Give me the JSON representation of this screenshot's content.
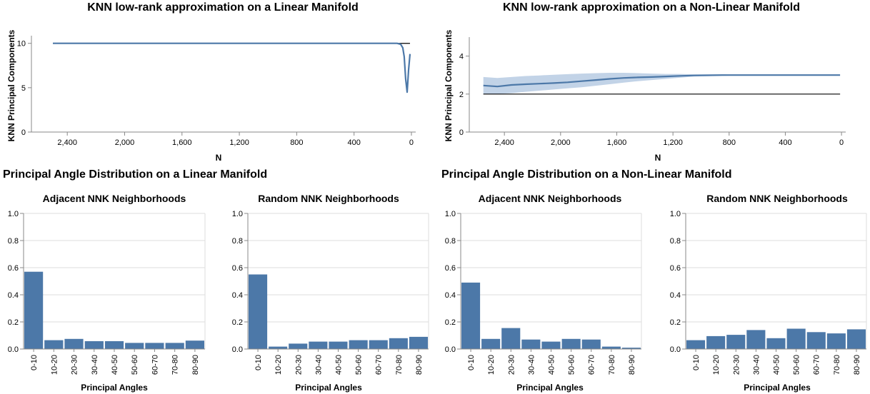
{
  "colors": {
    "series": "#4c78a8",
    "band": "#a8c0dd",
    "reference": "#000000",
    "grid": "#dddddd",
    "axis": "#888888"
  },
  "line_charts": [
    {
      "type": "line",
      "title": "KNN low-rank approximation on a Linear Manifold",
      "xlabel": "N",
      "ylabel": "KNN Principal Components",
      "x_reversed": true,
      "xlim": [
        2650,
        -30
      ],
      "ylim": [
        0,
        14
      ],
      "xticks": [
        2400,
        2000,
        1600,
        1200,
        800,
        400,
        0
      ],
      "xtick_labels": [
        "2,400",
        "2,000",
        "1,600",
        "1,200",
        "800",
        "400",
        "0"
      ],
      "yticks": [
        0,
        5,
        10
      ],
      "ytick_labels": [
        "0",
        "5",
        "10"
      ],
      "reference_y": 10,
      "grid": false,
      "x": [
        2500,
        2000,
        1500,
        1000,
        500,
        200,
        100,
        75,
        60,
        50,
        40,
        30,
        20,
        10
      ],
      "y": [
        10,
        10,
        10,
        10,
        10,
        10,
        10,
        9.9,
        9.5,
        8.5,
        6,
        4.5,
        7,
        8.8
      ]
    },
    {
      "type": "line",
      "title": "KNN low-rank approximation on a Non-Linear Manifold",
      "xlabel": "N",
      "ylabel": "KNN Principal Components",
      "x_reversed": true,
      "xlim": [
        2650,
        -30
      ],
      "ylim": [
        0,
        5
      ],
      "xticks": [
        2400,
        2000,
        1600,
        1200,
        800,
        400,
        0
      ],
      "xtick_labels": [
        "2,400",
        "2,000",
        "1,600",
        "1,200",
        "800",
        "400",
        "0"
      ],
      "yticks": [
        0,
        2,
        4
      ],
      "ytick_labels": [
        "0",
        "2",
        "4"
      ],
      "reference_y": 2,
      "grid": false,
      "x": [
        2550,
        2450,
        2350,
        2250,
        2150,
        2050,
        1950,
        1850,
        1750,
        1650,
        1550,
        1450,
        1350,
        1250,
        1150,
        1050,
        950,
        850,
        750,
        600,
        400,
        200,
        10
      ],
      "y": [
        2.45,
        2.4,
        2.48,
        2.52,
        2.55,
        2.58,
        2.62,
        2.68,
        2.74,
        2.8,
        2.85,
        2.88,
        2.9,
        2.93,
        2.96,
        2.98,
        2.99,
        3.0,
        3.0,
        3.0,
        3.0,
        3.0,
        3.0
      ],
      "band_low": [
        2.0,
        2.0,
        2.05,
        2.12,
        2.18,
        2.24,
        2.3,
        2.36,
        2.44,
        2.52,
        2.6,
        2.68,
        2.74,
        2.8,
        2.86,
        2.92,
        2.95,
        2.96,
        2.98,
        3.0,
        3.0,
        3.0,
        3.0
      ],
      "band_high": [
        2.9,
        2.85,
        2.9,
        2.95,
        2.98,
        3.02,
        3.05,
        3.08,
        3.1,
        3.12,
        3.12,
        3.1,
        3.08,
        3.06,
        3.06,
        3.04,
        3.04,
        3.04,
        3.02,
        3.0,
        3.0,
        3.0,
        3.0
      ]
    }
  ],
  "section_titles": [
    "Principal Angle Distribution on a Linear Manifold",
    "Principal Angle Distribution on a Non-Linear Manifold"
  ],
  "chart_data": [
    {
      "type": "bar",
      "title": "Adjacent NNK Neighborhoods",
      "xlabel": "Principal Angles",
      "ylabel": "",
      "categories": [
        "0-10",
        "10-20",
        "20-30",
        "30-40",
        "40-50",
        "50-60",
        "60-70",
        "70-80",
        "80-90"
      ],
      "values": [
        0.57,
        0.065,
        0.075,
        0.058,
        0.058,
        0.045,
        0.045,
        0.045,
        0.062
      ],
      "ylim": [
        0,
        1
      ],
      "yticks": [
        "0.0",
        "0.2",
        "0.4",
        "0.6",
        "0.8",
        "1.0"
      ],
      "grid": true
    },
    {
      "type": "bar",
      "title": "Random NNK Neighborhoods",
      "xlabel": "Principal Angles",
      "ylabel": "",
      "categories": [
        "0-10",
        "10-20",
        "20-30",
        "30-40",
        "40-50",
        "50-60",
        "60-70",
        "70-80",
        "80-90"
      ],
      "values": [
        0.55,
        0.018,
        0.04,
        0.055,
        0.055,
        0.065,
        0.065,
        0.08,
        0.09
      ],
      "ylim": [
        0,
        1
      ],
      "yticks": [
        "0.0",
        "0.2",
        "0.4",
        "0.6",
        "0.8",
        "1.0"
      ],
      "grid": true
    },
    {
      "type": "bar",
      "title": "Adjacent NNK Neighborhoods",
      "xlabel": "Principal Angles",
      "ylabel": "",
      "categories": [
        "0-10",
        "10-20",
        "20-30",
        "30-40",
        "40-50",
        "50-60",
        "60-70",
        "70-80",
        "80-90"
      ],
      "values": [
        0.49,
        0.075,
        0.155,
        0.07,
        0.055,
        0.075,
        0.07,
        0.018,
        0.01
      ],
      "ylim": [
        0,
        1
      ],
      "yticks": [
        "0.0",
        "0.2",
        "0.4",
        "0.6",
        "0.8",
        "1.0"
      ],
      "grid": true
    },
    {
      "type": "bar",
      "title": "Random NNK Neighborhoods",
      "xlabel": "Principal Angles",
      "ylabel": "",
      "categories": [
        "0-10",
        "10-20",
        "20-30",
        "30-40",
        "40-50",
        "50-60",
        "60-70",
        "70-80",
        "80-90"
      ],
      "values": [
        0.065,
        0.095,
        0.105,
        0.14,
        0.08,
        0.15,
        0.125,
        0.115,
        0.145
      ],
      "ylim": [
        0,
        1
      ],
      "yticks": [
        "0.0",
        "0.2",
        "0.4",
        "0.6",
        "0.8",
        "1.0"
      ],
      "grid": true
    }
  ]
}
